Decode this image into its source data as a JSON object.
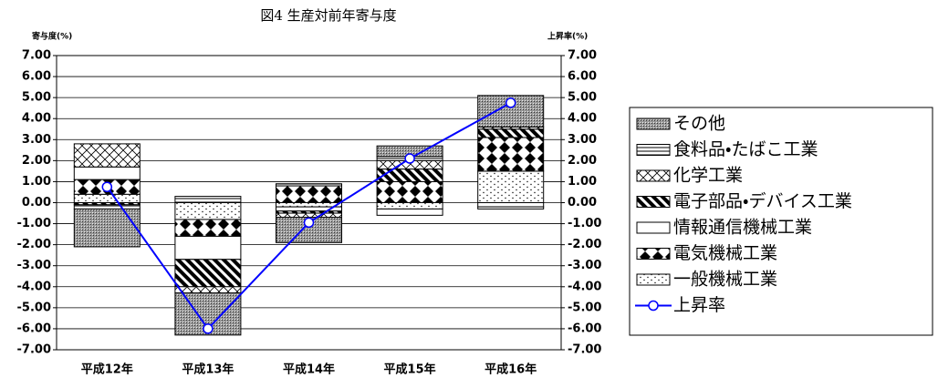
{
  "chart_data": {
    "type": "bar",
    "title": "図4 生産対前年寄与度",
    "y_label": "寄与度(%)",
    "y2_label": "上昇率(%)",
    "categories": [
      "平成12年",
      "平成13年",
      "平成14年",
      "平成15年",
      "平成16年"
    ],
    "ylim": [
      -7,
      7
    ],
    "yticks": [
      {
        "value": 7,
        "label": "7.00"
      },
      {
        "value": 6,
        "label": "6.00"
      },
      {
        "value": 5,
        "label": "5.00"
      },
      {
        "value": 4,
        "label": "4.00"
      },
      {
        "value": 3,
        "label": "3.00"
      },
      {
        "value": 2,
        "label": "2.00"
      },
      {
        "value": 1,
        "label": "1.00"
      },
      {
        "value": 0,
        "label": "0.00"
      },
      {
        "value": -1,
        "label": "-1.00"
      },
      {
        "value": -2,
        "label": "-2.00"
      },
      {
        "value": -3,
        "label": "-3.00"
      },
      {
        "value": -4,
        "label": "-4.00"
      },
      {
        "value": -5,
        "label": "-5.00"
      },
      {
        "value": -6,
        "label": "-6.00"
      },
      {
        "value": -7,
        "label": "-7.00"
      }
    ],
    "y2lim": [
      -7,
      7
    ],
    "y2ticks": [
      {
        "value": 7,
        "label": "7.00"
      },
      {
        "value": 6,
        "label": "6.00"
      },
      {
        "value": 5,
        "label": "5.00"
      },
      {
        "value": 4,
        "label": "4.00"
      },
      {
        "value": 3,
        "label": "3.00"
      },
      {
        "value": 2,
        "label": "2.00"
      },
      {
        "value": 1,
        "label": "1.00"
      },
      {
        "value": 0,
        "label": "0.00"
      },
      {
        "value": -1,
        "label": "-1.00"
      },
      {
        "value": -2,
        "label": "-2.00"
      },
      {
        "value": -3,
        "label": "-3.00"
      },
      {
        "value": -4,
        "label": "-4.00"
      },
      {
        "value": -5,
        "label": "-5.00"
      },
      {
        "value": -6,
        "label": "-6.00"
      },
      {
        "value": -7,
        "label": "-7.00"
      }
    ],
    "grid": true,
    "stacked": true,
    "legend": "right",
    "series": [
      {
        "name": "一般機械工業",
        "type": "bar",
        "color": "#000000",
        "pattern": "sparse-dots",
        "values": [
          0.4,
          -0.8,
          -0.2,
          -0.3,
          1.5
        ]
      },
      {
        "name": "電気機械工業",
        "type": "bar",
        "color": "#000000",
        "pattern": "diamonds",
        "values": [
          0.7,
          -0.8,
          0.8,
          1.0,
          1.6
        ]
      },
      {
        "name": "情報通信機械工業",
        "type": "bar",
        "color": "#000000",
        "pattern": "blank",
        "values": [
          0.6,
          -1.1,
          -0.2,
          -0.3,
          -0.2
        ]
      },
      {
        "name": "電子部品・デバイス工業",
        "type": "bar",
        "color": "#000000",
        "pattern": "diagonal",
        "values": [
          -0.1,
          -1.3,
          -0.1,
          0.6,
          0.4
        ]
      },
      {
        "name": "化学工業",
        "type": "bar",
        "color": "#000000",
        "pattern": "crosshatch",
        "values": [
          1.1,
          -0.3,
          -0.2,
          0.4,
          0.1
        ]
      },
      {
        "name": "食料品・たばこ工業",
        "type": "bar",
        "color": "#000000",
        "pattern": "horizontal-lines",
        "values": [
          -0.2,
          0.3,
          0.1,
          0.2,
          -0.1
        ]
      },
      {
        "name": "その他",
        "type": "bar",
        "color": "#000000",
        "pattern": "dense-dots",
        "values": [
          -1.8,
          -2.0,
          -1.2,
          0.5,
          1.5
        ]
      },
      {
        "name": "上昇率",
        "type": "line",
        "axis": "y2",
        "color": "#0000ff",
        "values": [
          0.75,
          -6.0,
          -0.95,
          2.1,
          4.75
        ]
      }
    ]
  }
}
